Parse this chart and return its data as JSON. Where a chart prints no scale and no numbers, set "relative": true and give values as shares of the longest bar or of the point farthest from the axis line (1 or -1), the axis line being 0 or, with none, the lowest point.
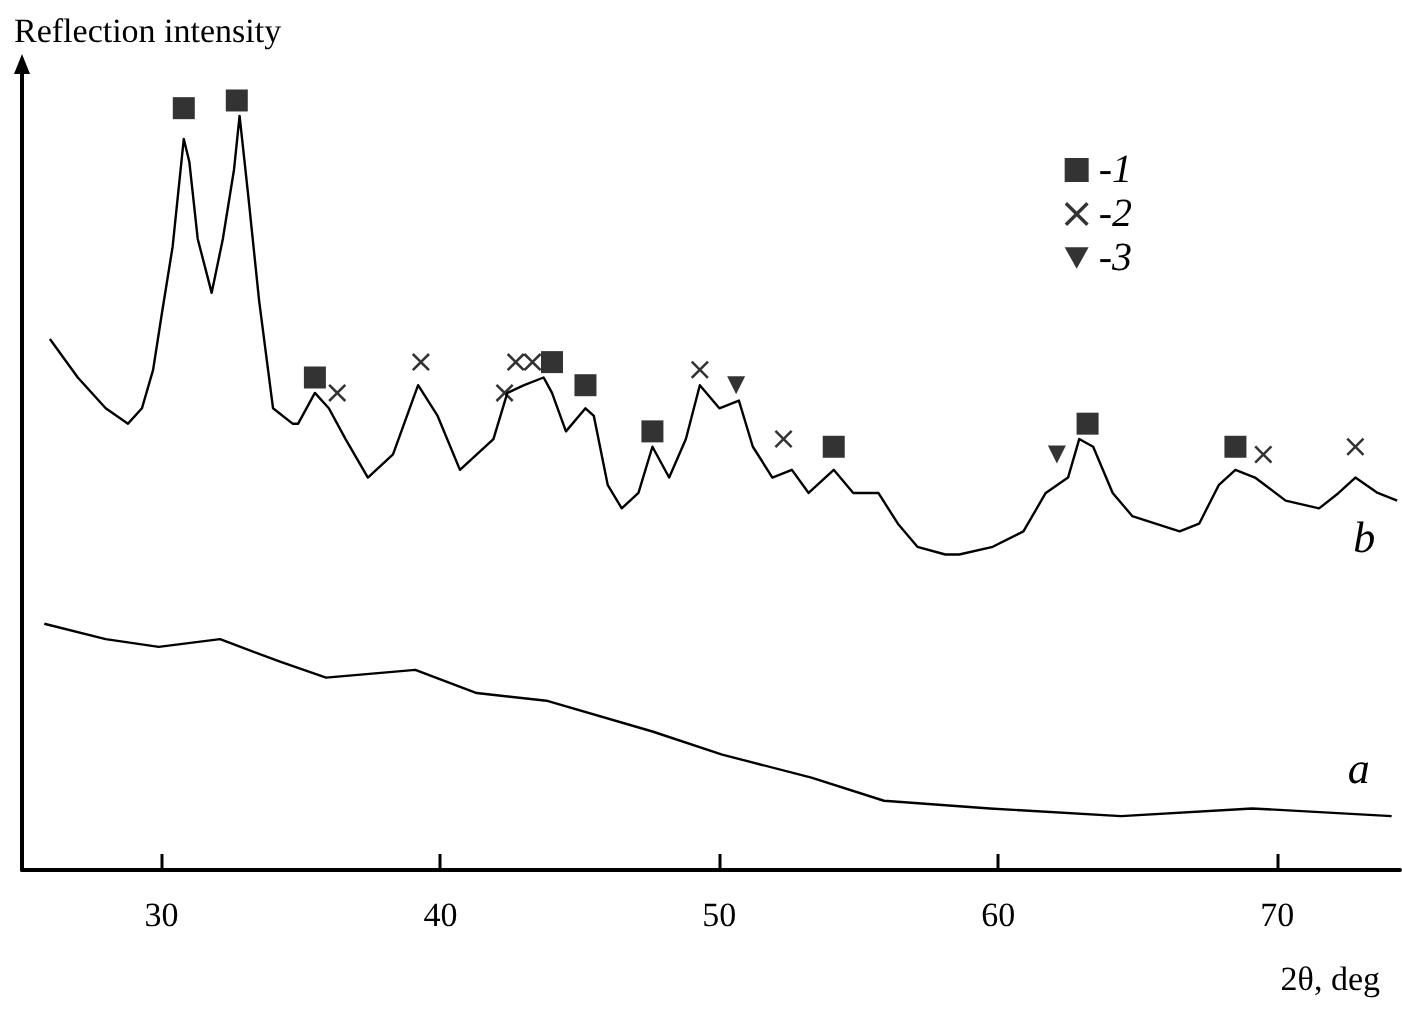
{
  "chart_data": {
    "type": "line",
    "relative": true,
    "ylabel": "Reflection intensity",
    "xlabel": "2θ, deg",
    "xlim": [
      25,
      74.4
    ],
    "xticks": [
      30,
      40,
      50,
      60,
      70
    ],
    "grid": false,
    "legend": "top right",
    "series": [
      {
        "name": "b",
        "color": "#000000",
        "marker": "none",
        "x": [
          26.0,
          27.0,
          28.0,
          28.8,
          29.3,
          29.7,
          30.0,
          30.4,
          30.8,
          31.0,
          31.3,
          31.8,
          32.2,
          32.6,
          32.8,
          33.1,
          33.5,
          34.0,
          34.7,
          34.9,
          35.5,
          36.0,
          36.6,
          37.4,
          38.3,
          39.2,
          39.9,
          40.7,
          41.9,
          42.4,
          43.0,
          43.7,
          44.0,
          44.5,
          45.2,
          45.5,
          46.0,
          46.5,
          47.1,
          47.6,
          48.2,
          48.8,
          49.3,
          50.0,
          50.7,
          51.2,
          51.9,
          52.6,
          53.2,
          54.1,
          54.8,
          55.7,
          56.4,
          57.1,
          58.1,
          58.6,
          59.8,
          60.9,
          61.7,
          62.5,
          62.9,
          63.4,
          64.1,
          64.8,
          66.5,
          67.2,
          67.9,
          68.5,
          69.2,
          70.3,
          71.5,
          72.2,
          72.8,
          73.6,
          74.3
        ],
        "values": [
          0.69,
          0.64,
          0.6,
          0.58,
          0.6,
          0.65,
          0.72,
          0.81,
          0.95,
          0.92,
          0.82,
          0.75,
          0.82,
          0.91,
          0.98,
          0.88,
          0.74,
          0.6,
          0.58,
          0.58,
          0.62,
          0.6,
          0.56,
          0.51,
          0.54,
          0.63,
          0.59,
          0.52,
          0.56,
          0.62,
          0.63,
          0.64,
          0.62,
          0.57,
          0.6,
          0.59,
          0.5,
          0.47,
          0.49,
          0.55,
          0.51,
          0.56,
          0.63,
          0.6,
          0.61,
          0.55,
          0.51,
          0.52,
          0.49,
          0.52,
          0.49,
          0.49,
          0.45,
          0.42,
          0.41,
          0.41,
          0.42,
          0.44,
          0.49,
          0.51,
          0.56,
          0.55,
          0.49,
          0.46,
          0.44,
          0.45,
          0.5,
          0.52,
          0.51,
          0.48,
          0.47,
          0.49,
          0.51,
          0.49,
          0.48
        ]
      },
      {
        "name": "a",
        "color": "#000000",
        "marker": "none",
        "x": [
          25.8,
          28.0,
          29.9,
          32.1,
          34.3,
          35.9,
          39.1,
          41.3,
          43.8,
          47.6,
          50.1,
          53.3,
          55.9,
          59.7,
          64.4,
          69.1,
          74.1
        ],
        "values": [
          0.32,
          0.3,
          0.29,
          0.3,
          0.27,
          0.25,
          0.26,
          0.23,
          0.22,
          0.18,
          0.15,
          0.12,
          0.09,
          0.08,
          0.07,
          0.08,
          0.07
        ]
      },
      {
        "name": "-1",
        "type": "scatter",
        "color": "#000000",
        "marker": "square",
        "x": [
          30.8,
          32.7,
          35.5,
          44.0,
          45.2,
          47.6,
          54.1,
          63.2,
          68.5
        ],
        "values": [
          0.99,
          1.0,
          0.64,
          0.66,
          0.63,
          0.57,
          0.55,
          0.58,
          0.55
        ]
      },
      {
        "name": "-2",
        "type": "scatter",
        "color": "#000000",
        "marker": "cross",
        "x": [
          36.3,
          39.3,
          42.3,
          42.7,
          43.3,
          49.3,
          52.3,
          69.5,
          72.8
        ],
        "values": [
          0.62,
          0.66,
          0.62,
          0.66,
          0.66,
          0.65,
          0.56,
          0.54,
          0.55
        ]
      },
      {
        "name": "-3",
        "type": "scatter",
        "color": "#000000",
        "marker": "triangle",
        "x": [
          50.6,
          62.1
        ],
        "values": [
          0.63,
          0.54
        ]
      }
    ]
  }
}
